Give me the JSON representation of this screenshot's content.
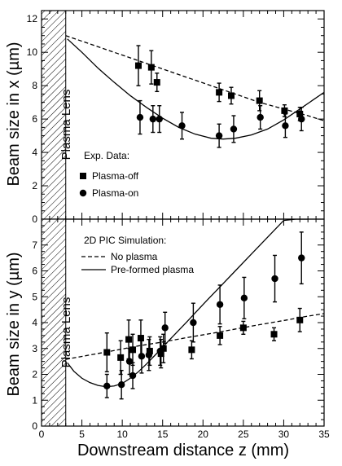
{
  "chart_data": [
    {
      "type": "scatter",
      "panel": "top",
      "ylabel": "Beam size in x (µm)",
      "xlim": [
        0,
        35
      ],
      "ylim": [
        0,
        12.5
      ],
      "xticks": [
        0,
        5,
        10,
        15,
        20,
        25,
        30,
        35
      ],
      "yticks": [
        0,
        2,
        4,
        6,
        8,
        10,
        12
      ],
      "lens_label": "Plasma Lens",
      "lens_region": [
        0,
        3
      ],
      "legend": {
        "placement": "lower-left",
        "title": "Exp. Data:",
        "entries": [
          {
            "label": "Plasma-off",
            "marker": "square"
          },
          {
            "label": "Plasma-on",
            "marker": "circle"
          }
        ]
      },
      "series": [
        {
          "name": "Plasma-off",
          "marker": "square",
          "x": [
            12.0,
            13.6,
            14.3,
            22.0,
            23.5,
            27.0,
            30.1,
            32.0
          ],
          "y": [
            9.2,
            9.1,
            8.2,
            7.6,
            7.4,
            7.1,
            6.5,
            6.3
          ],
          "yerr": [
            1.2,
            1.0,
            0.55,
            0.55,
            0.5,
            0.6,
            0.35,
            0.4
          ]
        },
        {
          "name": "Plasma-on",
          "marker": "circle",
          "x": [
            12.2,
            13.8,
            14.6,
            17.4,
            22.0,
            23.8,
            27.1,
            30.2,
            32.2
          ],
          "y": [
            6.1,
            6.0,
            6.0,
            5.6,
            5.0,
            5.4,
            6.1,
            5.6,
            6.0
          ],
          "yerr": [
            1.0,
            0.8,
            0.8,
            0.8,
            0.7,
            0.8,
            0.7,
            0.7,
            0.7
          ]
        }
      ],
      "curves": [
        {
          "name": "No plasma",
          "style": "dashed",
          "x": [
            3,
            6,
            9,
            12,
            15,
            18,
            21,
            24,
            27,
            30,
            33,
            35
          ],
          "y": [
            11.0,
            10.5,
            10.0,
            9.5,
            9.0,
            8.5,
            8.0,
            7.5,
            7.0,
            6.6,
            6.2,
            5.9
          ]
        },
        {
          "name": "Pre-formed plasma",
          "style": "solid",
          "x": [
            3.2,
            5,
            7,
            9,
            11,
            13,
            15,
            17,
            19,
            21,
            22.5,
            24,
            26,
            28,
            30,
            32,
            33.5,
            35
          ],
          "y": [
            10.8,
            10.0,
            9.05,
            8.2,
            7.4,
            6.7,
            6.05,
            5.5,
            5.1,
            4.85,
            4.8,
            4.85,
            5.05,
            5.4,
            5.95,
            6.6,
            7.1,
            7.6
          ]
        }
      ]
    },
    {
      "type": "scatter",
      "panel": "bottom",
      "xlabel": "Downstream distance z (mm)",
      "ylabel": "Beam size in y (µm)",
      "xlim": [
        0,
        35
      ],
      "ylim": [
        0,
        8
      ],
      "xticks": [
        0,
        5,
        10,
        15,
        20,
        25,
        30,
        35
      ],
      "yticks": [
        0,
        1,
        2,
        3,
        4,
        5,
        6,
        7
      ],
      "lens_label": "Plasma Lens",
      "lens_region": [
        0,
        3
      ],
      "legend": {
        "placement": "top-left",
        "title": "2D PIC Simulation:",
        "entries": [
          {
            "label": "No plasma",
            "style": "dashed"
          },
          {
            "label": "Pre-formed plasma",
            "style": "solid"
          }
        ]
      },
      "series": [
        {
          "name": "Plasma-off",
          "marker": "square",
          "x": [
            8.1,
            9.8,
            10.8,
            11.3,
            12.3,
            13.4,
            14.8,
            15.1,
            18.6,
            22.1,
            25.0,
            28.8,
            32.0
          ],
          "y": [
            2.85,
            2.65,
            3.35,
            2.95,
            3.4,
            2.9,
            2.8,
            3.0,
            2.95,
            3.5,
            3.8,
            3.55,
            4.1
          ],
          "yerr": [
            0.75,
            0.65,
            0.75,
            0.6,
            0.7,
            0.55,
            0.55,
            0.55,
            0.35,
            0.35,
            0.25,
            0.25,
            0.45
          ]
        },
        {
          "name": "Plasma-on",
          "marker": "circle",
          "x": [
            8.1,
            9.9,
            10.9,
            11.3,
            12.4,
            13.3,
            14.7,
            15.3,
            18.8,
            22.1,
            25.1,
            28.9,
            32.2
          ],
          "y": [
            1.55,
            1.6,
            2.5,
            1.95,
            2.7,
            2.75,
            2.9,
            3.8,
            4.0,
            4.7,
            4.95,
            5.7,
            6.5
          ],
          "yerr": [
            0.45,
            0.55,
            0.5,
            0.5,
            0.65,
            0.6,
            0.55,
            0.6,
            0.75,
            0.75,
            0.8,
            0.9,
            1.0
          ]
        }
      ],
      "curves": [
        {
          "name": "No plasma",
          "style": "dashed",
          "x": [
            3,
            6,
            9,
            12,
            15,
            18,
            21,
            24,
            27,
            30,
            33,
            35
          ],
          "y": [
            2.58,
            2.75,
            2.92,
            3.1,
            3.25,
            3.42,
            3.58,
            3.75,
            3.92,
            4.08,
            4.25,
            4.35
          ]
        },
        {
          "name": "Pre-formed plasma",
          "style": "solid",
          "x": [
            3.2,
            4,
            5,
            6,
            7,
            8,
            9,
            10,
            11,
            12,
            13,
            14,
            16,
            18,
            20,
            22,
            24,
            26,
            28,
            30,
            31.5,
            33
          ],
          "y": [
            2.45,
            2.12,
            1.85,
            1.68,
            1.57,
            1.52,
            1.55,
            1.65,
            1.85,
            2.1,
            2.4,
            2.72,
            3.38,
            4.03,
            4.7,
            5.35,
            6.0,
            6.65,
            7.3,
            7.95,
            8.0,
            8.0
          ]
        }
      ]
    }
  ]
}
